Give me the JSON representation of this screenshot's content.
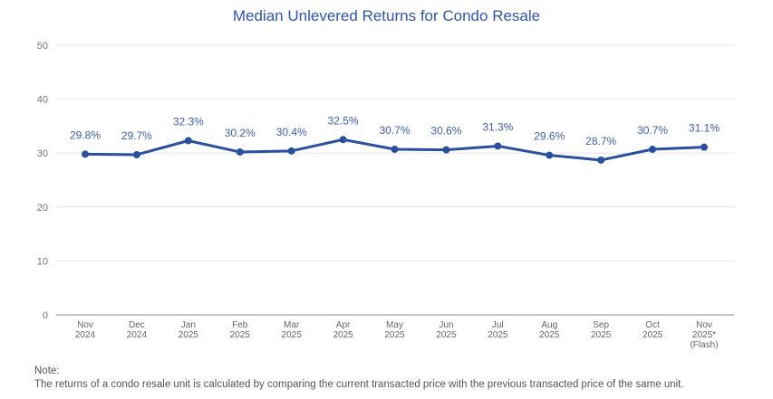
{
  "chart_data": {
    "type": "line",
    "title": "Median Unlevered Returns for Condo Resale",
    "xlabel": "",
    "ylabel": "",
    "ylim": [
      0,
      50
    ],
    "yticks": [
      0,
      10,
      20,
      30,
      40,
      50
    ],
    "grid": true,
    "categories": [
      [
        "Nov",
        "2024"
      ],
      [
        "Dec",
        "2024"
      ],
      [
        "Jan",
        "2025"
      ],
      [
        "Feb",
        "2025"
      ],
      [
        "Mar",
        "2025"
      ],
      [
        "Apr",
        "2025"
      ],
      [
        "May",
        "2025"
      ],
      [
        "Jun",
        "2025"
      ],
      [
        "Jul",
        "2025"
      ],
      [
        "Aug",
        "2025"
      ],
      [
        "Sep",
        "2025"
      ],
      [
        "Oct",
        "2025"
      ],
      [
        "Nov",
        "2025*",
        "(Flash)"
      ]
    ],
    "series": [
      {
        "name": "Median Unlevered Returns",
        "values": [
          29.8,
          29.7,
          32.3,
          30.2,
          30.4,
          32.5,
          30.7,
          30.6,
          31.3,
          29.6,
          28.7,
          30.7,
          31.1
        ],
        "labels": [
          "29.8%",
          "29.7%",
          "32.3%",
          "30.2%",
          "30.4%",
          "32.5%",
          "30.7%",
          "30.6%",
          "31.3%",
          "29.6%",
          "28.7%",
          "30.7%",
          "31.1%"
        ],
        "color": "#2a4f9f"
      }
    ]
  },
  "note": {
    "heading": "Note:",
    "text": "The returns of a condo resale unit is calculated by comparing the current transacted price with the previous transacted price of the same unit."
  }
}
